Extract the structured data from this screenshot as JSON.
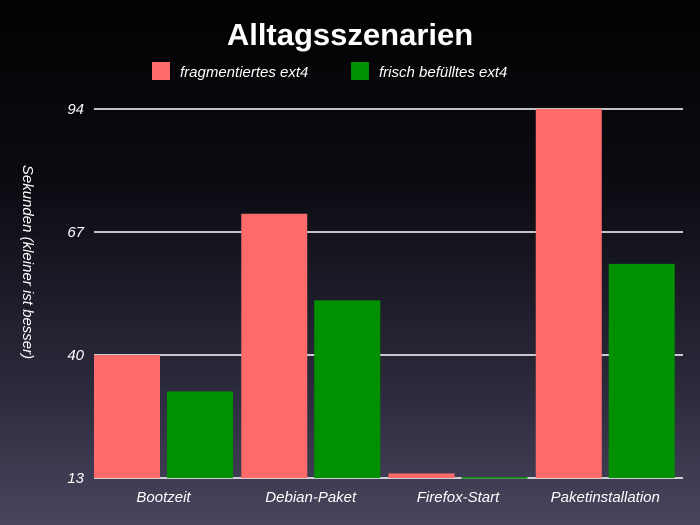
{
  "chart_data": {
    "type": "bar",
    "title": "Alltagsszenarien",
    "ylabel": "Sekunden (kleiner ist besser)",
    "xlabel": "",
    "categories": [
      "Bootzeit",
      "Debian-Paket",
      "Firefox-Start",
      "Paketinstallation"
    ],
    "series": [
      {
        "name": "fragmentiertes ext4",
        "color": "#ff6b6b",
        "values": [
          40,
          71,
          14,
          94
        ]
      },
      {
        "name": "frisch befülltes ext4",
        "color": "#009000",
        "values": [
          32,
          52,
          13.2,
          60
        ]
      }
    ],
    "ylim": [
      13,
      94
    ],
    "yticks": [
      13,
      40,
      67,
      94
    ],
    "grid": true,
    "legend": "top-center"
  }
}
